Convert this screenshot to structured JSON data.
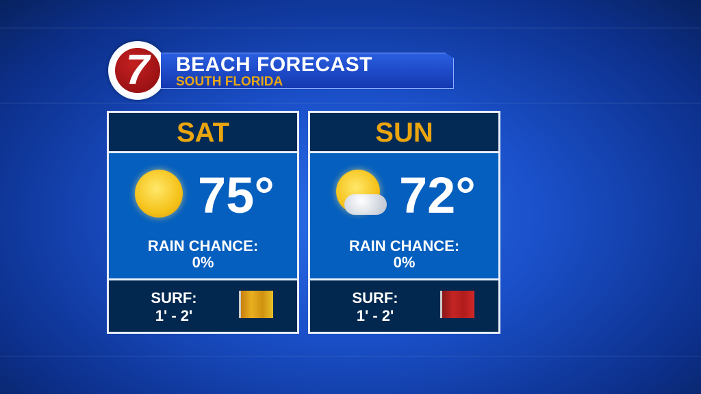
{
  "header": {
    "logo": "7",
    "title": "BEACH FORECAST",
    "subtitle": "SOUTH FLORIDA"
  },
  "days": [
    {
      "day": "SAT",
      "icon": "sun-icon",
      "temp": "75°",
      "rain_label": "RAIN CHANCE:",
      "rain_value": "0%",
      "surf_label": "SURF:",
      "surf_value": "1' - 2'",
      "flag": "yellow",
      "flag_color": "#e0a010"
    },
    {
      "day": "SUN",
      "icon": "partly-cloudy-icon",
      "temp": "72°",
      "rain_label": "RAIN CHANCE:",
      "rain_value": "0%",
      "surf_label": "SURF:",
      "surf_value": "1' - 2'",
      "flag": "red",
      "flag_color": "#c02020"
    }
  ],
  "colors": {
    "accent": "#eaa50f",
    "navy": "#032a55",
    "blue": "#055fbe"
  }
}
